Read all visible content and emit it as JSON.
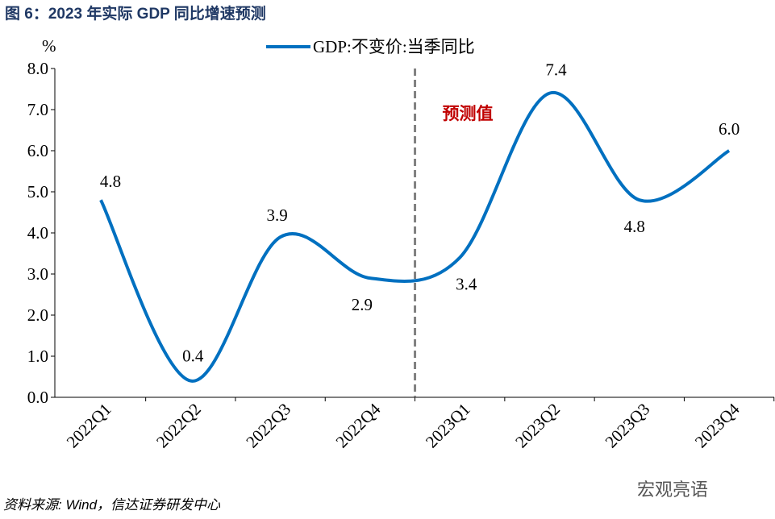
{
  "title": "图 6：2023 年实际 GDP 同比增速预测",
  "source": "资料来源: Wind，信达证券研发中心",
  "watermark": "宏观亮语",
  "chart_data": {
    "type": "line",
    "smooth": true,
    "ylabel": "%",
    "ylim": [
      0,
      8
    ],
    "yticks": [
      "0.0",
      "1.0",
      "2.0",
      "3.0",
      "4.0",
      "5.0",
      "6.0",
      "7.0",
      "8.0"
    ],
    "categories": [
      "2022Q1",
      "2022Q2",
      "2022Q3",
      "2022Q4",
      "2023Q1",
      "2023Q2",
      "2023Q3",
      "2023Q4"
    ],
    "series": [
      {
        "name": "GDP:不变价:当季同比",
        "values": [
          4.8,
          0.4,
          3.9,
          2.9,
          3.4,
          7.4,
          4.8,
          6.0
        ],
        "color": "#0070c0"
      }
    ],
    "data_labels": [
      "4.8",
      "0.4",
      "3.9",
      "2.9",
      "3.4",
      "7.4",
      "4.8",
      "6.0"
    ],
    "divider": {
      "between": [
        "2022Q4",
        "2023Q1"
      ],
      "style": "dashed",
      "color": "#808080"
    },
    "annotation": {
      "text": "预测值",
      "color": "#c00000"
    },
    "legend": "top-center",
    "grid": false
  }
}
